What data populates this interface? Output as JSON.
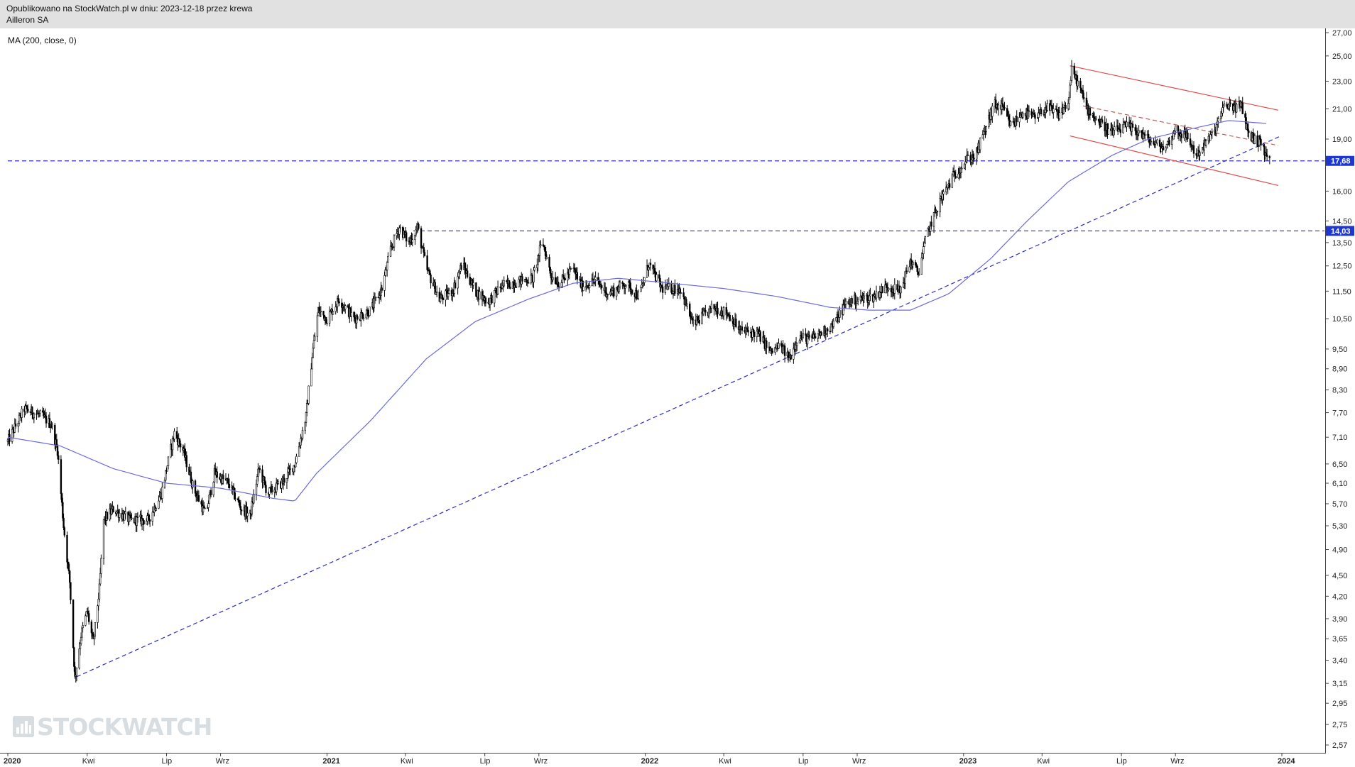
{
  "header": {
    "line1": "Opublikowano na StockWatch.pl w dniu: 2023-12-18 przez krewa",
    "line2": "Ailleron SA"
  },
  "indicator_label": "MA (200, close, 0)",
  "watermark": {
    "text": "STOCKWATCH",
    "icon": "bar-chart-icon"
  },
  "colors": {
    "candles": "#000000",
    "ma": "#6b6bdc",
    "support_line": "#2b2bc8",
    "channel": "#e04b4b",
    "price_box": "#1e37d0",
    "axis": "#444444"
  },
  "chart_data": {
    "type": "candlestick",
    "title": "Ailleron SA",
    "y_scale": "log",
    "ylim": [
      2.5,
      27.5
    ],
    "x_range": [
      "2020-01-01",
      "2023-12-31"
    ],
    "y_ticks": [
      "27,00",
      "25,00",
      "23,00",
      "21,00",
      "19,00",
      "16,00",
      "14,50",
      "13,50",
      "12,50",
      "11,50",
      "10,50",
      "9,50",
      "8,90",
      "8,30",
      "7,70",
      "7,10",
      "6,50",
      "6,10",
      "5,70",
      "5,30",
      "4,90",
      "4,50",
      "4,20",
      "3,90",
      "3,65",
      "3,40",
      "3,15",
      "2,95",
      "2,75",
      "2,57"
    ],
    "x_ticks": [
      {
        "label": "2020",
        "date": "2020-01-01",
        "year": true
      },
      {
        "label": "Kwi",
        "date": "2020-04-01"
      },
      {
        "label": "Lip",
        "date": "2020-07-01"
      },
      {
        "label": "Wrz",
        "date": "2020-09-01"
      },
      {
        "label": "2021",
        "date": "2021-01-01",
        "year": true
      },
      {
        "label": "Kwi",
        "date": "2021-04-01"
      },
      {
        "label": "Lip",
        "date": "2021-07-01"
      },
      {
        "label": "Wrz",
        "date": "2021-09-01"
      },
      {
        "label": "2022",
        "date": "2022-01-01",
        "year": true
      },
      {
        "label": "Kwi",
        "date": "2022-04-01"
      },
      {
        "label": "Lip",
        "date": "2022-07-01"
      },
      {
        "label": "Wrz",
        "date": "2022-09-01"
      },
      {
        "label": "2023",
        "date": "2023-01-01",
        "year": true
      },
      {
        "label": "Kwi",
        "date": "2023-04-01"
      },
      {
        "label": "Lip",
        "date": "2023-07-01"
      },
      {
        "label": "Wrz",
        "date": "2023-09-01"
      },
      {
        "label": "2024",
        "date": "2024-01-01",
        "year": true
      }
    ],
    "price_path": [
      [
        "2020-01-01",
        7.0
      ],
      [
        "2020-01-20",
        7.8
      ],
      [
        "2020-02-10",
        7.6
      ],
      [
        "2020-02-20",
        7.4
      ],
      [
        "2020-02-27",
        6.8
      ],
      [
        "2020-03-05",
        5.3
      ],
      [
        "2020-03-12",
        4.4
      ],
      [
        "2020-03-18",
        3.2
      ],
      [
        "2020-03-25",
        3.7
      ],
      [
        "2020-04-01",
        4.0
      ],
      [
        "2020-04-08",
        3.6
      ],
      [
        "2020-04-15",
        4.3
      ],
      [
        "2020-04-20",
        5.4
      ],
      [
        "2020-05-01",
        5.6
      ],
      [
        "2020-05-20",
        5.4
      ],
      [
        "2020-06-10",
        5.4
      ],
      [
        "2020-06-25",
        5.9
      ],
      [
        "2020-07-10",
        7.2
      ],
      [
        "2020-07-20",
        6.8
      ],
      [
        "2020-08-01",
        6.0
      ],
      [
        "2020-08-15",
        5.5
      ],
      [
        "2020-08-25",
        6.3
      ],
      [
        "2020-09-10",
        6.1
      ],
      [
        "2020-09-25",
        5.6
      ],
      [
        "2020-10-05",
        5.5
      ],
      [
        "2020-10-15",
        6.4
      ],
      [
        "2020-10-25",
        5.9
      ],
      [
        "2020-11-10",
        6.1
      ],
      [
        "2020-11-25",
        6.5
      ],
      [
        "2020-12-08",
        7.6
      ],
      [
        "2020-12-15",
        9.3
      ],
      [
        "2020-12-22",
        10.8
      ],
      [
        "2021-01-01",
        10.5
      ],
      [
        "2021-01-15",
        11.2
      ],
      [
        "2021-02-01",
        10.5
      ],
      [
        "2021-02-20",
        10.8
      ],
      [
        "2021-03-05",
        11.6
      ],
      [
        "2021-03-15",
        13.2
      ],
      [
        "2021-03-25",
        14.2
      ],
      [
        "2021-04-05",
        13.5
      ],
      [
        "2021-04-15",
        14.2
      ],
      [
        "2021-04-25",
        12.4
      ],
      [
        "2021-05-10",
        11.2
      ],
      [
        "2021-05-25",
        11.5
      ],
      [
        "2021-06-05",
        12.6
      ],
      [
        "2021-06-20",
        11.5
      ],
      [
        "2021-07-05",
        11.1
      ],
      [
        "2021-07-20",
        11.7
      ],
      [
        "2021-08-10",
        11.9
      ],
      [
        "2021-08-25",
        12.0
      ],
      [
        "2021-09-05",
        13.6
      ],
      [
        "2021-09-15",
        12.1
      ],
      [
        "2021-09-25",
        11.8
      ],
      [
        "2021-10-10",
        12.4
      ],
      [
        "2021-10-20",
        11.7
      ],
      [
        "2021-11-05",
        11.9
      ],
      [
        "2021-11-20",
        11.4
      ],
      [
        "2021-12-10",
        11.8
      ],
      [
        "2021-12-25",
        11.3
      ],
      [
        "2022-01-05",
        12.6
      ],
      [
        "2022-01-20",
        11.6
      ],
      [
        "2022-02-10",
        11.6
      ],
      [
        "2022-02-25",
        10.3
      ],
      [
        "2022-03-05",
        10.5
      ],
      [
        "2022-03-20",
        10.9
      ],
      [
        "2022-04-05",
        10.7
      ],
      [
        "2022-04-20",
        10.1
      ],
      [
        "2022-05-10",
        10.0
      ],
      [
        "2022-05-25",
        9.4
      ],
      [
        "2022-06-05",
        9.6
      ],
      [
        "2022-06-15",
        9.2
      ],
      [
        "2022-06-25",
        9.9
      ],
      [
        "2022-07-10",
        9.8
      ],
      [
        "2022-07-20",
        10.0
      ],
      [
        "2022-08-05",
        10.3
      ],
      [
        "2022-08-20",
        11.1
      ],
      [
        "2022-09-05",
        11.2
      ],
      [
        "2022-09-20",
        11.3
      ],
      [
        "2022-10-05",
        11.7
      ],
      [
        "2022-10-20",
        11.5
      ],
      [
        "2022-11-01",
        12.7
      ],
      [
        "2022-11-10",
        12.2
      ],
      [
        "2022-11-20",
        13.9
      ],
      [
        "2022-12-05",
        15.5
      ],
      [
        "2022-12-20",
        16.8
      ],
      [
        "2023-01-05",
        17.8
      ],
      [
        "2023-01-15",
        18.0
      ],
      [
        "2023-01-25",
        19.5
      ],
      [
        "2023-02-05",
        21.3
      ],
      [
        "2023-02-15",
        21.0
      ],
      [
        "2023-02-25",
        19.8
      ],
      [
        "2023-03-10",
        20.8
      ],
      [
        "2023-03-25",
        20.3
      ],
      [
        "2023-04-05",
        21.1
      ],
      [
        "2023-04-20",
        20.6
      ],
      [
        "2023-05-01",
        21.4
      ],
      [
        "2023-05-05",
        23.8
      ],
      [
        "2023-05-12",
        22.9
      ],
      [
        "2023-05-22",
        21.1
      ],
      [
        "2023-06-05",
        20.1
      ],
      [
        "2023-06-20",
        19.4
      ],
      [
        "2023-07-05",
        19.8
      ],
      [
        "2023-07-20",
        19.5
      ],
      [
        "2023-08-05",
        18.8
      ],
      [
        "2023-08-20",
        18.4
      ],
      [
        "2023-09-01",
        19.6
      ],
      [
        "2023-09-15",
        19.1
      ],
      [
        "2023-09-25",
        18.0
      ],
      [
        "2023-10-05",
        18.7
      ],
      [
        "2023-10-15",
        19.4
      ],
      [
        "2023-10-25",
        20.9
      ],
      [
        "2023-11-01",
        21.3
      ],
      [
        "2023-11-10",
        21.1
      ],
      [
        "2023-11-16",
        21.2
      ],
      [
        "2023-11-23",
        19.5
      ],
      [
        "2023-11-30",
        19.0
      ],
      [
        "2023-12-08",
        18.8
      ],
      [
        "2023-12-13",
        18.1
      ],
      [
        "2023-12-18",
        17.68
      ]
    ],
    "ma_path": [
      [
        "2020-01-01",
        7.1
      ],
      [
        "2020-03-01",
        6.9
      ],
      [
        "2020-05-01",
        6.4
      ],
      [
        "2020-07-01",
        6.1
      ],
      [
        "2020-09-01",
        6.0
      ],
      [
        "2020-11-01",
        5.8
      ],
      [
        "2020-11-25",
        5.75
      ],
      [
        "2020-12-20",
        6.3
      ],
      [
        "2021-02-20",
        7.5
      ],
      [
        "2021-04-25",
        9.2
      ],
      [
        "2021-06-20",
        10.4
      ],
      [
        "2021-08-20",
        11.2
      ],
      [
        "2021-10-10",
        11.8
      ],
      [
        "2021-12-01",
        12.0
      ],
      [
        "2022-02-01",
        11.8
      ],
      [
        "2022-04-01",
        11.6
      ],
      [
        "2022-06-01",
        11.3
      ],
      [
        "2022-08-01",
        10.9
      ],
      [
        "2022-09-15",
        10.8
      ],
      [
        "2022-11-01",
        10.8
      ],
      [
        "2022-12-15",
        11.4
      ],
      [
        "2023-02-01",
        12.8
      ],
      [
        "2023-03-15",
        14.5
      ],
      [
        "2023-05-01",
        16.5
      ],
      [
        "2023-06-20",
        18.0
      ],
      [
        "2023-08-01",
        19.0
      ],
      [
        "2023-09-15",
        19.6
      ],
      [
        "2023-11-01",
        20.2
      ],
      [
        "2023-12-15",
        20.0
      ]
    ],
    "last_price": {
      "value": 17.68,
      "label": "17,68"
    },
    "level_price": {
      "value": 14.03,
      "label": "14,03"
    },
    "trend_lines": [
      {
        "type": "support",
        "style": "dashed",
        "color": "#2b2bc8",
        "from": [
          "2020-03-20",
          3.22
        ],
        "to": [
          "2023-12-31",
          19.2
        ]
      },
      {
        "type": "horizontal",
        "style": "dashed",
        "color": "#2b2bc8",
        "value": 17.68,
        "from": "2020-01-01",
        "to": "2023-12-31"
      },
      {
        "type": "horizontal",
        "style": "dashed",
        "color": "#2b2bc8",
        "value": 14.03,
        "from": "2021-04-10",
        "to": "2023-12-31"
      },
      {
        "type": "channel-top",
        "style": "solid",
        "color": "#e04b4b",
        "from": [
          "2023-05-03",
          24.2
        ],
        "to": [
          "2023-12-28",
          20.9
        ]
      },
      {
        "type": "channel-mid",
        "style": "dashed",
        "color": "#e04b4b",
        "from": [
          "2023-05-18",
          21.2
        ],
        "to": [
          "2023-12-28",
          18.6
        ]
      },
      {
        "type": "channel-bottom",
        "style": "solid",
        "color": "#e04b4b",
        "from": [
          "2023-05-03",
          19.2
        ],
        "to": [
          "2023-12-28",
          16.3
        ]
      }
    ]
  }
}
